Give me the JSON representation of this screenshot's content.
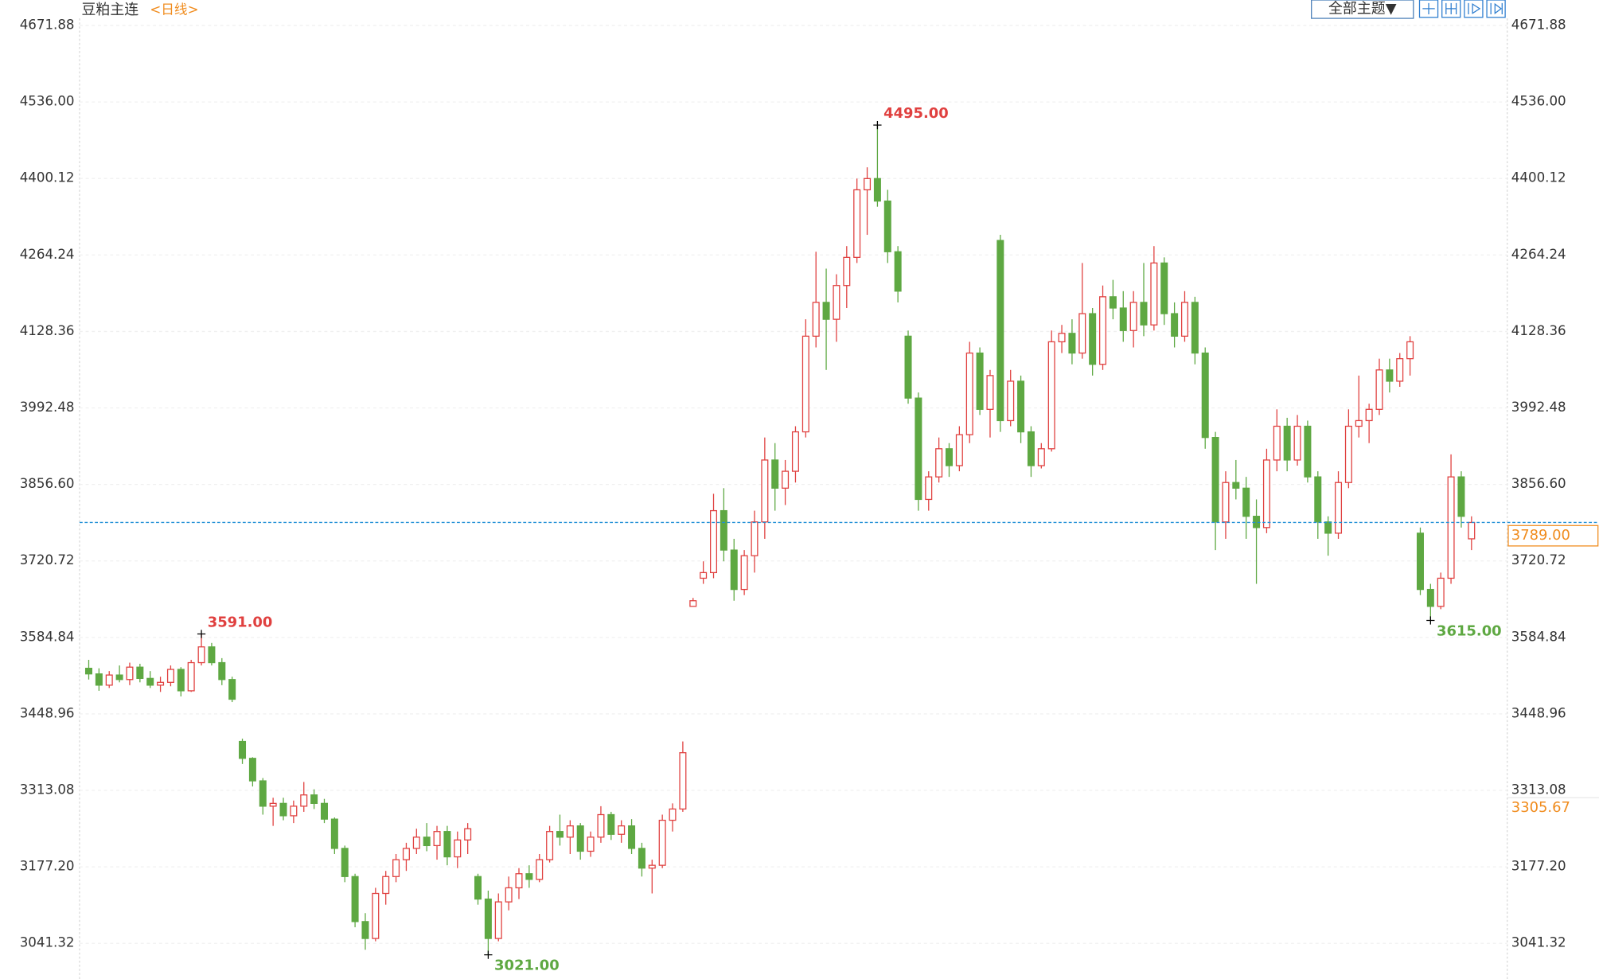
{
  "chart_data": {
    "type": "candlestick",
    "title": "豆粕主连",
    "subtitle": "<日线>",
    "toolbar": {
      "theme_button": "全部主题▼"
    },
    "up_color": "#e0403f",
    "down_color": "#5ea842",
    "ylim": [
      2978,
      4684.6
    ],
    "yticks": [
      4671.88,
      {
        "value": 4536,
        "label": "4536.00"
      },
      4400.12,
      4264.24,
      4128.36,
      3992.48,
      {
        "value": 3856.6,
        "label": "3856.60"
      },
      3720.72,
      3584.84,
      3448.96,
      3313.08,
      {
        "value": 3177.2,
        "label": "3177.20"
      },
      3041.32
    ],
    "grid": true,
    "price_line": {
      "value": 3789,
      "label": "3789.00",
      "color": "#1f8fd6"
    },
    "marker": {
      "value": 3305.67,
      "label": "3305.67",
      "color": "#f08c1e"
    },
    "annotations": [
      {
        "value": 3591,
        "label": "3591.00",
        "at": "high",
        "color": "#e0403f"
      },
      {
        "value": 4495,
        "label": "4495.00",
        "at": "high",
        "color": "#e0403f"
      },
      {
        "value": 3021,
        "label": "3021.00",
        "at": "low",
        "color": "#5ea842"
      },
      {
        "value": 3615,
        "label": "3615.00",
        "at": "low",
        "color": "#5ea842"
      }
    ],
    "values": [
      [
        3530,
        3545,
        3510,
        3520
      ],
      [
        3520,
        3530,
        3490,
        3500
      ],
      [
        3500,
        3525,
        3495,
        3518
      ],
      [
        3518,
        3535,
        3505,
        3510
      ],
      [
        3510,
        3540,
        3500,
        3532
      ],
      [
        3532,
        3538,
        3505,
        3512
      ],
      [
        3512,
        3525,
        3495,
        3500
      ],
      [
        3500,
        3515,
        3488,
        3505
      ],
      [
        3505,
        3535,
        3498,
        3528
      ],
      [
        3528,
        3532,
        3480,
        3490
      ],
      [
        3490,
        3545,
        3488,
        3540
      ],
      [
        3540,
        3591,
        3535,
        3568
      ],
      [
        3568,
        3575,
        3535,
        3540
      ],
      [
        3540,
        3548,
        3500,
        3510
      ],
      [
        3510,
        3515,
        3470,
        3475
      ],
      [
        3400,
        3405,
        3360,
        3370
      ],
      [
        3370,
        3372,
        3320,
        3330
      ],
      [
        3330,
        3335,
        3270,
        3285
      ],
      [
        3285,
        3300,
        3250,
        3290
      ],
      [
        3290,
        3300,
        3260,
        3268
      ],
      [
        3268,
        3295,
        3255,
        3285
      ],
      [
        3285,
        3328,
        3275,
        3305
      ],
      [
        3305,
        3315,
        3280,
        3290
      ],
      [
        3290,
        3298,
        3255,
        3262
      ],
      [
        3262,
        3265,
        3200,
        3210
      ],
      [
        3210,
        3215,
        3150,
        3160
      ],
      [
        3160,
        3165,
        3070,
        3080
      ],
      [
        3080,
        3095,
        3030,
        3050
      ],
      [
        3050,
        3140,
        3045,
        3130
      ],
      [
        3130,
        3170,
        3110,
        3160
      ],
      [
        3160,
        3200,
        3150,
        3190
      ],
      [
        3190,
        3220,
        3170,
        3210
      ],
      [
        3210,
        3245,
        3200,
        3230
      ],
      [
        3230,
        3255,
        3205,
        3215
      ],
      [
        3215,
        3250,
        3190,
        3240
      ],
      [
        3240,
        3250,
        3180,
        3195
      ],
      [
        3195,
        3240,
        3175,
        3225
      ],
      [
        3225,
        3255,
        3200,
        3245
      ],
      [
        3160,
        3165,
        3110,
        3120
      ],
      [
        3120,
        3135,
        3021,
        3050
      ],
      [
        3050,
        3130,
        3045,
        3115
      ],
      [
        3115,
        3160,
        3100,
        3140
      ],
      [
        3140,
        3175,
        3120,
        3165
      ],
      [
        3165,
        3180,
        3140,
        3155
      ],
      [
        3155,
        3200,
        3150,
        3190
      ],
      [
        3190,
        3250,
        3185,
        3240
      ],
      [
        3240,
        3270,
        3215,
        3230
      ],
      [
        3230,
        3260,
        3200,
        3250
      ],
      [
        3250,
        3255,
        3190,
        3205
      ],
      [
        3205,
        3240,
        3195,
        3230
      ],
      [
        3230,
        3285,
        3220,
        3270
      ],
      [
        3270,
        3275,
        3225,
        3235
      ],
      [
        3235,
        3260,
        3220,
        3250
      ],
      [
        3250,
        3262,
        3200,
        3210
      ],
      [
        3210,
        3220,
        3160,
        3175
      ],
      [
        3175,
        3190,
        3130,
        3180
      ],
      [
        3180,
        3270,
        3175,
        3260
      ],
      [
        3260,
        3290,
        3240,
        3280
      ],
      [
        3280,
        3400,
        3275,
        3380
      ],
      [
        3640,
        3655,
        3640,
        3650
      ],
      [
        3690,
        3720,
        3680,
        3700
      ],
      [
        3700,
        3840,
        3690,
        3810
      ],
      [
        3810,
        3850,
        3720,
        3740
      ],
      [
        3740,
        3760,
        3650,
        3670
      ],
      [
        3670,
        3740,
        3660,
        3730
      ],
      [
        3730,
        3810,
        3700,
        3790
      ],
      [
        3790,
        3940,
        3760,
        3900
      ],
      [
        3900,
        3930,
        3810,
        3850
      ],
      [
        3850,
        3900,
        3820,
        3880
      ],
      [
        3880,
        3960,
        3860,
        3950
      ],
      [
        3950,
        4150,
        3940,
        4120
      ],
      [
        4120,
        4270,
        4100,
        4180
      ],
      [
        4180,
        4240,
        4060,
        4150
      ],
      [
        4150,
        4230,
        4110,
        4210
      ],
      [
        4210,
        4280,
        4170,
        4260
      ],
      [
        4260,
        4400,
        4250,
        4380
      ],
      [
        4380,
        4420,
        4300,
        4400
      ],
      [
        4400,
        4495,
        4350,
        4360
      ],
      [
        4360,
        4380,
        4250,
        4270
      ],
      [
        4270,
        4280,
        4180,
        4200
      ],
      [
        4120,
        4130,
        4000,
        4010
      ],
      [
        4010,
        4020,
        3810,
        3830
      ],
      [
        3830,
        3880,
        3810,
        3870
      ],
      [
        3870,
        3940,
        3860,
        3920
      ],
      [
        3920,
        3930,
        3870,
        3890
      ],
      [
        3890,
        3960,
        3880,
        3945
      ],
      [
        3945,
        4110,
        3930,
        4090
      ],
      [
        4090,
        4100,
        3980,
        3990
      ],
      [
        3990,
        4060,
        3940,
        4050
      ],
      [
        4290,
        4300,
        3950,
        3970
      ],
      [
        3970,
        4060,
        3960,
        4040
      ],
      [
        4040,
        4050,
        3930,
        3950
      ],
      [
        3950,
        3960,
        3870,
        3890
      ],
      [
        3890,
        3930,
        3885,
        3920
      ],
      [
        3920,
        4130,
        3915,
        4110
      ],
      [
        4110,
        4140,
        4090,
        4125
      ],
      [
        4125,
        4150,
        4070,
        4090
      ],
      [
        4090,
        4250,
        4080,
        4160
      ],
      [
        4160,
        4170,
        4050,
        4070
      ],
      [
        4070,
        4210,
        4060,
        4190
      ],
      [
        4190,
        4220,
        4150,
        4170
      ],
      [
        4170,
        4200,
        4110,
        4130
      ],
      [
        4130,
        4200,
        4100,
        4180
      ],
      [
        4180,
        4250,
        4120,
        4140
      ],
      [
        4140,
        4280,
        4130,
        4250
      ],
      [
        4250,
        4260,
        4140,
        4160
      ],
      [
        4160,
        4180,
        4100,
        4120
      ],
      [
        4120,
        4200,
        4110,
        4180
      ],
      [
        4180,
        4190,
        4070,
        4090
      ],
      [
        4090,
        4100,
        3920,
        3940
      ],
      [
        3940,
        3950,
        3740,
        3790
      ],
      [
        3790,
        3880,
        3760,
        3860
      ],
      [
        3860,
        3900,
        3830,
        3850
      ],
      [
        3850,
        3870,
        3760,
        3800
      ],
      [
        3800,
        3830,
        3680,
        3780
      ],
      [
        3780,
        3920,
        3770,
        3900
      ],
      [
        3900,
        3990,
        3880,
        3960
      ],
      [
        3960,
        3975,
        3880,
        3900
      ],
      [
        3900,
        3980,
        3890,
        3960
      ],
      [
        3960,
        3970,
        3860,
        3870
      ],
      [
        3870,
        3880,
        3760,
        3790
      ],
      [
        3790,
        3800,
        3730,
        3770
      ],
      [
        3770,
        3880,
        3760,
        3860
      ],
      [
        3860,
        3990,
        3850,
        3960
      ],
      [
        3960,
        4050,
        3940,
        3970
      ],
      [
        3970,
        4000,
        3930,
        3990
      ],
      [
        3990,
        4080,
        3980,
        4060
      ],
      [
        4060,
        4080,
        4020,
        4040
      ],
      [
        4040,
        4090,
        4030,
        4080
      ],
      [
        4080,
        4120,
        4050,
        4110
      ],
      [
        3770,
        3780,
        3660,
        3670
      ],
      [
        3670,
        3680,
        3615,
        3640
      ],
      [
        3640,
        3700,
        3635,
        3690
      ],
      [
        3690,
        3910,
        3680,
        3870
      ],
      [
        3870,
        3880,
        3780,
        3800
      ],
      [
        3760,
        3800,
        3740,
        3789
      ]
    ]
  }
}
